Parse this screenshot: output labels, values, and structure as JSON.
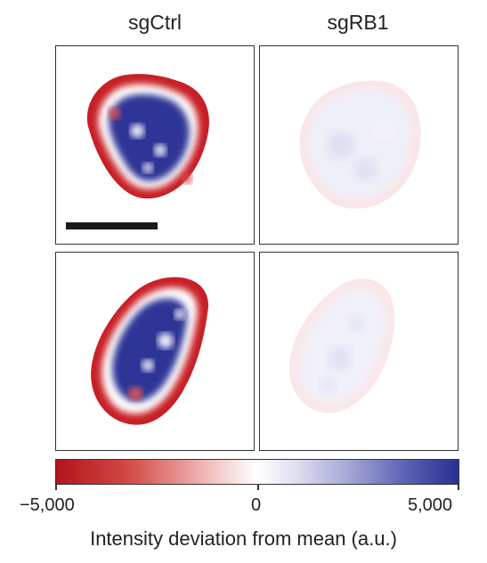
{
  "columns": [
    "sgCtrl",
    "sgRB1"
  ],
  "panels": [
    {
      "condition": "sgCtrl",
      "row": 1,
      "scale_bar": true
    },
    {
      "condition": "sgRB1",
      "row": 1,
      "scale_bar": false
    },
    {
      "condition": "sgCtrl",
      "row": 2,
      "scale_bar": false
    },
    {
      "condition": "sgRB1",
      "row": 2,
      "scale_bar": false
    }
  ],
  "colorbar": {
    "title": "Intensity deviation from mean (a.u.)",
    "min_label": "−5,000",
    "mid_label": "0",
    "max_label": "5,000",
    "colors": {
      "negative": "#b2141c",
      "zero": "#ffffff",
      "positive": "#2a2f93"
    }
  }
}
